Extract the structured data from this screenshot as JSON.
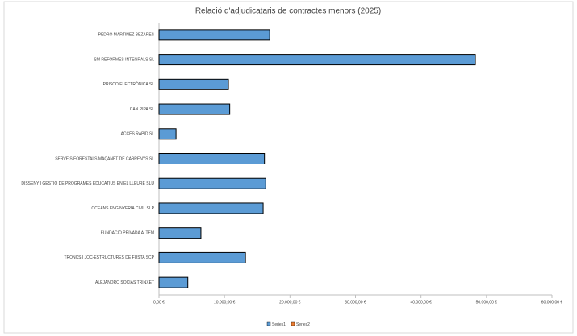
{
  "chart_data": {
    "type": "bar",
    "orientation": "horizontal",
    "title": "Relació d'adjudicataris de contractes menors (2025)",
    "categories": [
      "PEDRO MARTINEZ BEZARES",
      "SM REFORMES INTEGRALS SL",
      "PRISCO ELECTRÒNICA SL",
      "CAN PIPA SL",
      "ACCÉS RÀPID SL",
      "SERVEIS FORESTALS MAÇANET DE CABRENYS SL",
      "DISSENY I GESTIÓ DE PROGRAMES EDUCATIUS EN EL LLEURE SLU",
      "OCEANS ENGINYERIA CIVIL SLP",
      "FUNDACIÓ PRIVADA ALTEM",
      "TRONCS I JOC-ESTRUCTURES DE FUSTA SCP",
      "ALEJANDRO SOCIAS TRINXET"
    ],
    "series": [
      {
        "name": "Series1",
        "color": "#5b9bd5",
        "values": [
          16900,
          48300,
          10600,
          10800,
          2600,
          16100,
          16300,
          15900,
          6400,
          13200,
          4400
        ]
      },
      {
        "name": "Series2",
        "color": "#ed7d31",
        "values": [
          null,
          null,
          null,
          null,
          null,
          null,
          null,
          null,
          null,
          null,
          null
        ]
      }
    ],
    "xlim": [
      0,
      60000
    ],
    "xticks": [
      {
        "value": 0,
        "label": "0,00 €"
      },
      {
        "value": 10000,
        "label": "10.000,00 €"
      },
      {
        "value": 20000,
        "label": "20.000,00 €"
      },
      {
        "value": 30000,
        "label": "30.000,00 €"
      },
      {
        "value": 40000,
        "label": "40.000,00 €"
      },
      {
        "value": 50000,
        "label": "50.000,00 €"
      },
      {
        "value": 60000,
        "label": "60.000,00 €"
      }
    ],
    "grid": false,
    "legend": "bottom"
  }
}
